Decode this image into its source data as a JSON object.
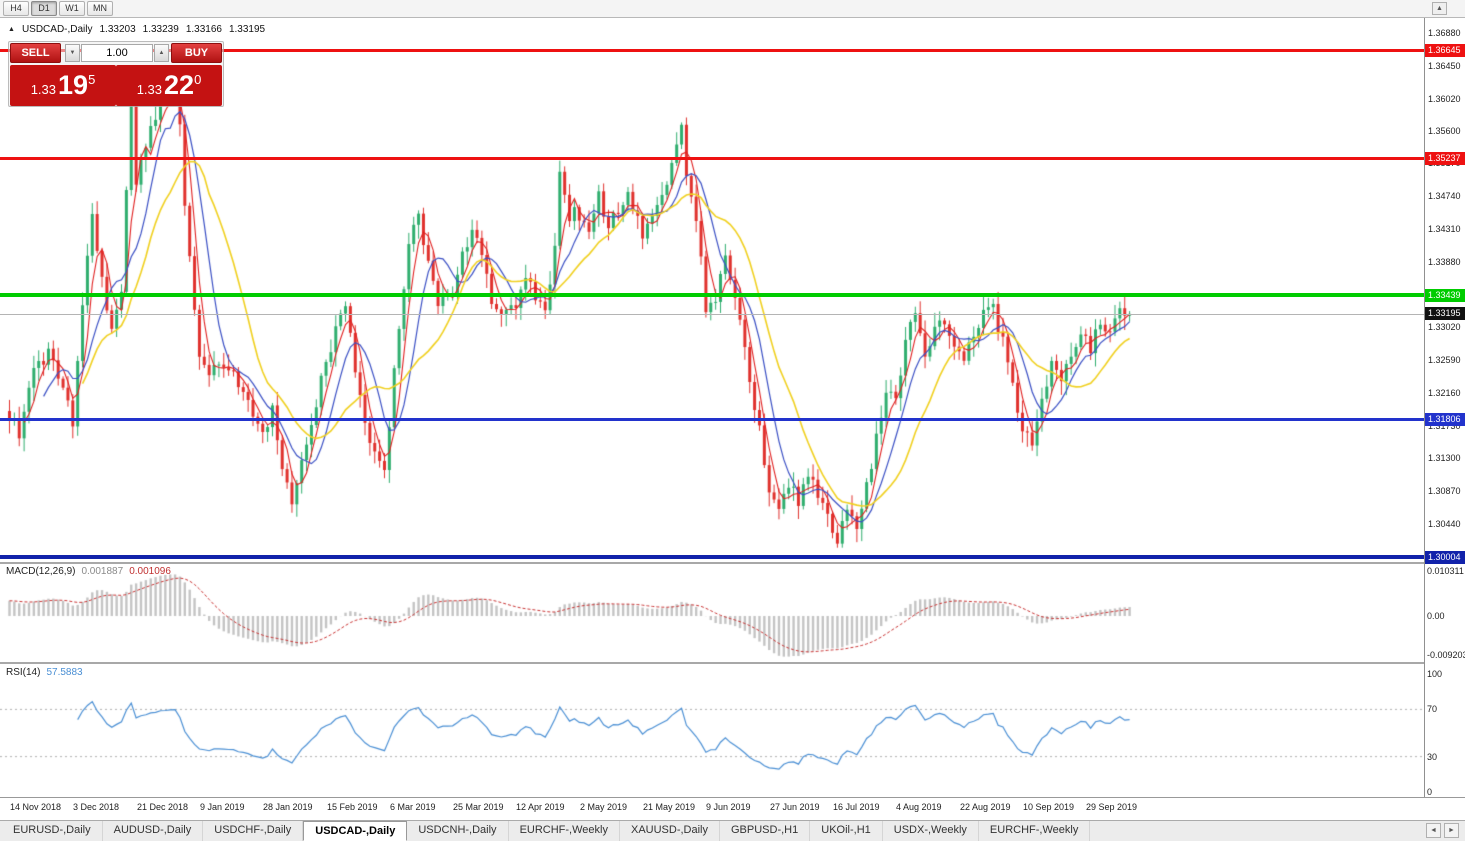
{
  "toolbar": {
    "timeframes": [
      {
        "label": "H4",
        "active": false
      },
      {
        "label": "D1",
        "active": true
      },
      {
        "label": "W1",
        "active": false
      },
      {
        "label": "MN",
        "active": false
      }
    ],
    "scroll_up_glyph": "▲"
  },
  "chart": {
    "marker_glyph": "▲",
    "title": "USDCAD-,Daily",
    "open": "1.33203",
    "high": "1.33239",
    "low": "1.33166",
    "close": "1.33195"
  },
  "trade_panel": {
    "sell_label": "SELL",
    "buy_label": "BUY",
    "volume": "1.00",
    "volume_down_glyph": "▼",
    "volume_up_glyph": "▲",
    "sell_price": {
      "base": "1.33",
      "pips": "19",
      "pt": "5"
    },
    "buy_price": {
      "base": "1.33",
      "pips": "22",
      "pt": "0"
    }
  },
  "price_axis": {
    "ticks": [
      "1.36880",
      "1.36450",
      "1.36020",
      "1.35600",
      "1.35170",
      "1.34740",
      "1.34310",
      "1.33880",
      "1.33450",
      "1.33020",
      "1.32590",
      "1.32160",
      "1.31730",
      "1.31300",
      "1.30870",
      "1.30440"
    ]
  },
  "current_price": {
    "value": "1.33195",
    "price": 1.33195
  },
  "hlines": [
    {
      "price": 1.36645,
      "label": "1.36645",
      "color": "#ee1111",
      "thickness": 3
    },
    {
      "price": 1.35237,
      "label": "1.35237",
      "color": "#ee1111",
      "thickness": 3
    },
    {
      "price": 1.33439,
      "label": "1.33439",
      "color": "#00cc00",
      "thickness": 4
    },
    {
      "price": 1.31806,
      "label": "1.31806",
      "color": "#2233cc",
      "thickness": 3
    },
    {
      "price": 1.30004,
      "label": "1.30004",
      "color": "#1122aa",
      "thickness": 4
    }
  ],
  "macd_panel": {
    "name": "MACD(12,26,9)",
    "value_main": "0.001887",
    "value_signal": "0.001096",
    "axis": [
      "0.010311",
      "0.00",
      "-0.009203"
    ]
  },
  "rsi_panel": {
    "name": "RSI(14)",
    "value": "57.5883",
    "axis": [
      "100",
      "70",
      "30",
      "0"
    ],
    "levels": [
      70,
      30
    ]
  },
  "date_axis": [
    "14 Nov 2018",
    "3 Dec 2018",
    "21 Dec 2018",
    "9 Jan 2019",
    "28 Jan 2019",
    "15 Feb 2019",
    "6 Mar 2019",
    "25 Mar 2019",
    "12 Apr 2019",
    "2 May 2019",
    "21 May 2019",
    "9 Jun 2019",
    "27 Jun 2019",
    "16 Jul 2019",
    "4 Aug 2019",
    "22 Aug 2019",
    "10 Sep 2019",
    "29 Sep 2019"
  ],
  "tab_bar": {
    "tabs": [
      "EURUSD-,Daily",
      "AUDUSD-,Daily",
      "USDCHF-,Daily",
      "USDCAD-,Daily",
      "USDCNH-,Daily",
      "EURCHF-,Weekly",
      "XAUUSD-,Daily",
      "GBPUSD-,H1",
      "UKOil-,H1",
      "USDX-,Weekly",
      "EURCHF-,Weekly"
    ],
    "active_index": 3,
    "scroll_left_glyph": "◄",
    "scroll_right_glyph": "►"
  },
  "chart_data": {
    "type": "candlestick",
    "symbol": "USDCAD",
    "timeframe": "Daily",
    "n_candles": 231,
    "axis_range": {
      "top": 1.3688,
      "bottom": 1.2983
    },
    "last": {
      "open": 1.33203,
      "high": 1.33239,
      "low": 1.33166,
      "close": 1.33195
    },
    "bid": 1.33195,
    "ask": 1.3322,
    "levels": [
      1.36645,
      1.35237,
      1.33439,
      1.31806,
      1.30004
    ],
    "colors": {
      "bull": "#2fae6e",
      "bear": "#e0312d",
      "macd_hist": "#c4c4c4",
      "macd_signal": "#c83232",
      "rsi_line": "#4a8fd4"
    },
    "moving_averages": [
      {
        "period": 4,
        "color": "#e02020",
        "width": 1.1
      },
      {
        "period": 8,
        "color": "#3a4fc4",
        "width": 1.2
      },
      {
        "period": 16,
        "color": "#f0d020",
        "width": 1.6
      }
    ],
    "macd": {
      "fast": 12,
      "slow": 26,
      "signal": 9,
      "last_main": 0.001887,
      "last_signal": 0.001096,
      "axis_max": 0.010311,
      "axis_min": -0.009203
    },
    "rsi": {
      "period": 14,
      "last": 57.5883,
      "levels": [
        70,
        30
      ]
    },
    "price_anchors": [
      [
        0,
        1.319
      ],
      [
        2,
        1.3165
      ],
      [
        5,
        1.324
      ],
      [
        8,
        1.3272
      ],
      [
        11,
        1.3228
      ],
      [
        13,
        1.317
      ],
      [
        15,
        1.333
      ],
      [
        17,
        1.3442
      ],
      [
        19,
        1.336
      ],
      [
        21,
        1.33
      ],
      [
        23,
        1.3345
      ],
      [
        25,
        1.36
      ],
      [
        26,
        1.348
      ],
      [
        27,
        1.353
      ],
      [
        29,
        1.3565
      ],
      [
        31,
        1.36
      ],
      [
        34,
        1.3622
      ],
      [
        35,
        1.356
      ],
      [
        36,
        1.347
      ],
      [
        37,
        1.339
      ],
      [
        38,
        1.332
      ],
      [
        39,
        1.327
      ],
      [
        41,
        1.3235
      ],
      [
        44,
        1.3258
      ],
      [
        47,
        1.3228
      ],
      [
        49,
        1.3208
      ],
      [
        52,
        1.3165
      ],
      [
        54,
        1.3195
      ],
      [
        56,
        1.311
      ],
      [
        58,
        1.3075
      ],
      [
        60,
        1.3125
      ],
      [
        63,
        1.3205
      ],
      [
        65,
        1.3258
      ],
      [
        67,
        1.3295
      ],
      [
        69,
        1.333
      ],
      [
        71,
        1.325
      ],
      [
        73,
        1.318
      ],
      [
        75,
        1.314
      ],
      [
        77,
        1.312
      ],
      [
        78,
        1.318
      ],
      [
        80,
        1.33
      ],
      [
        82,
        1.342
      ],
      [
        84,
        1.345
      ],
      [
        86,
        1.338
      ],
      [
        88,
        1.3335
      ],
      [
        91,
        1.334
      ],
      [
        93,
        1.3395
      ],
      [
        95,
        1.343
      ],
      [
        97,
        1.339
      ],
      [
        99,
        1.334
      ],
      [
        101,
        1.331
      ],
      [
        104,
        1.333
      ],
      [
        106,
        1.3375
      ],
      [
        108,
        1.3345
      ],
      [
        110,
        1.332
      ],
      [
        112,
        1.34
      ],
      [
        113,
        1.351
      ],
      [
        115,
        1.345
      ],
      [
        117,
        1.345
      ],
      [
        119,
        1.343
      ],
      [
        121,
        1.348
      ],
      [
        123,
        1.343
      ],
      [
        125,
        1.3455
      ],
      [
        127,
        1.348
      ],
      [
        129,
        1.3445
      ],
      [
        130,
        1.342
      ],
      [
        132,
        1.345
      ],
      [
        134,
        1.3475
      ],
      [
        136,
        1.3515
      ],
      [
        138,
        1.356
      ],
      [
        139,
        1.35
      ],
      [
        141,
        1.344
      ],
      [
        143,
        1.333
      ],
      [
        145,
        1.333
      ],
      [
        147,
        1.34
      ],
      [
        149,
        1.334
      ],
      [
        151,
        1.327
      ],
      [
        153,
        1.32
      ],
      [
        155,
        1.313
      ],
      [
        156,
        1.3085
      ],
      [
        158,
        1.3055
      ],
      [
        160,
        1.3095
      ],
      [
        162,
        1.3075
      ],
      [
        164,
        1.311
      ],
      [
        166,
        1.3085
      ],
      [
        168,
        1.3055
      ],
      [
        170,
        1.3025
      ],
      [
        172,
        1.306
      ],
      [
        174,
        1.3045
      ],
      [
        176,
        1.3095
      ],
      [
        178,
        1.3155
      ],
      [
        180,
        1.322
      ],
      [
        182,
        1.3205
      ],
      [
        184,
        1.3285
      ],
      [
        186,
        1.333
      ],
      [
        188,
        1.3265
      ],
      [
        190,
        1.3295
      ],
      [
        192,
        1.3315
      ],
      [
        194,
        1.3285
      ],
      [
        196,
        1.3265
      ],
      [
        198,
        1.3295
      ],
      [
        200,
        1.3315
      ],
      [
        202,
        1.333
      ],
      [
        204,
        1.328
      ],
      [
        206,
        1.3225
      ],
      [
        208,
        1.317
      ],
      [
        210,
        1.314
      ],
      [
        212,
        1.3205
      ],
      [
        214,
        1.3255
      ],
      [
        216,
        1.3235
      ],
      [
        218,
        1.3265
      ],
      [
        220,
        1.3295
      ],
      [
        222,
        1.327
      ],
      [
        224,
        1.3315
      ],
      [
        226,
        1.329
      ],
      [
        228,
        1.333
      ],
      [
        230,
        1.33195
      ]
    ]
  }
}
